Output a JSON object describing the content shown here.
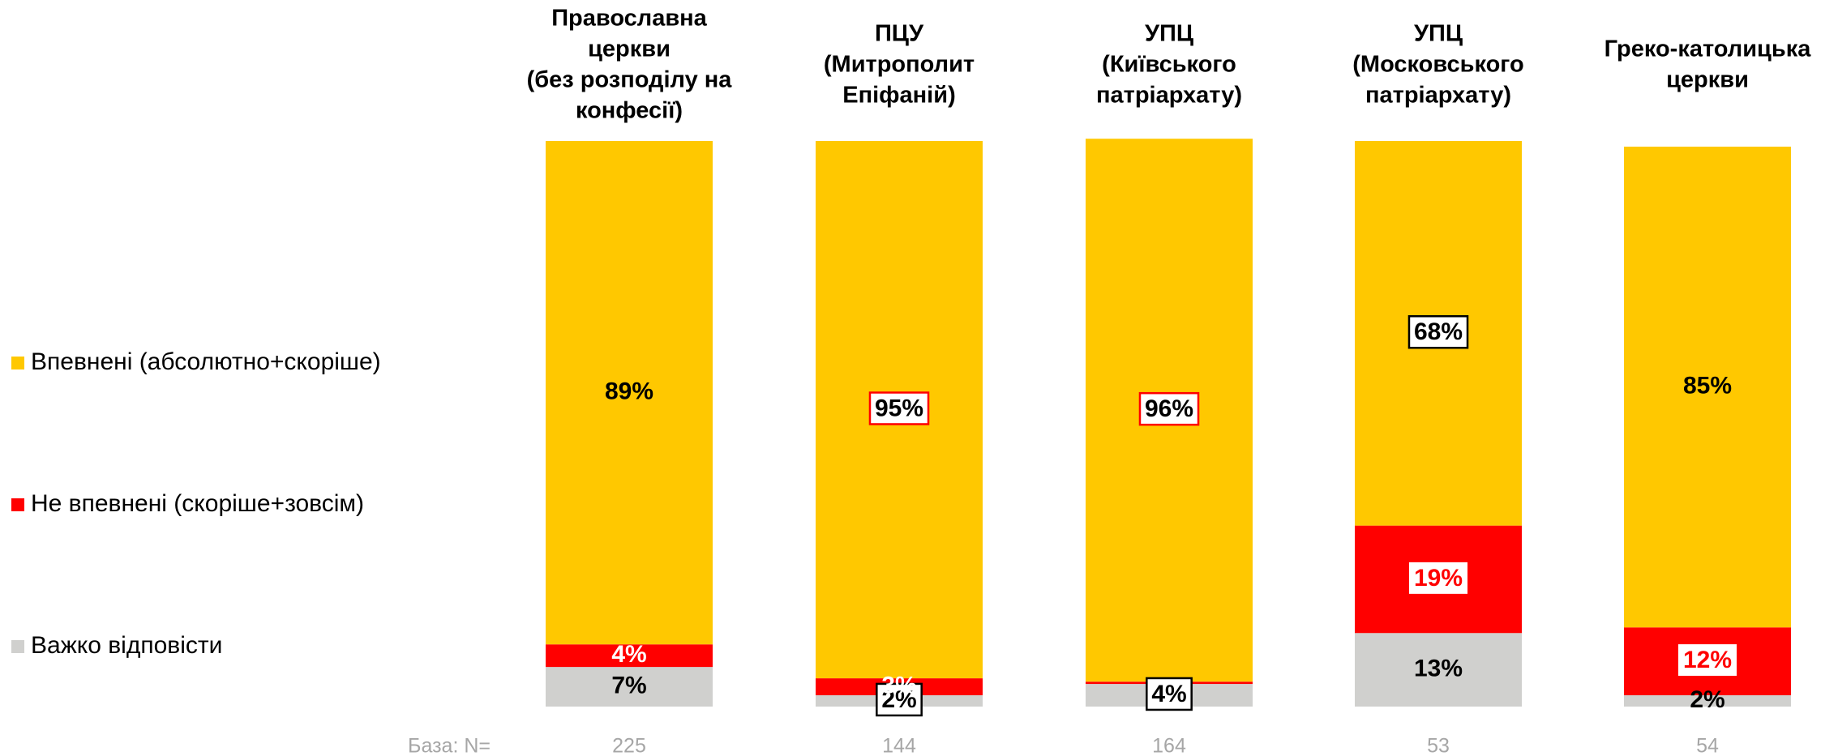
{
  "chart_data": {
    "type": "stacked-bar",
    "categories": [
      [
        "Православна",
        "церкви",
        "(без розподілу на",
        "конфесії)"
      ],
      [
        "ПЦУ",
        "(Митрополит",
        "Епіфаній)"
      ],
      [
        "УПЦ",
        "(Київського",
        "патріархату)"
      ],
      [
        "УПЦ",
        "(Московського",
        "патріархату)"
      ],
      [
        "Греко-католицька",
        "церкви"
      ]
    ],
    "series": [
      {
        "name": "Впевнені (абсолютно+скоріше)",
        "color": "#FFC800",
        "values": [
          89,
          95,
          96,
          68,
          85
        ],
        "value_labels": [
          "89%",
          "95%",
          "96%",
          "68%",
          "85%"
        ]
      },
      {
        "name": "Не впевнені (скоріше+зовсім)",
        "color": "#FF0000",
        "values": [
          4,
          3,
          0.4,
          19,
          12
        ],
        "value_labels": [
          "4%",
          "3%",
          null,
          "19%",
          "12%"
        ]
      },
      {
        "name": "Важко відповісти",
        "color": "#D0D0CE",
        "values": [
          7,
          2,
          4,
          13,
          2
        ],
        "value_labels": [
          "7%",
          "2%",
          "4%",
          "13%",
          "2%"
        ]
      }
    ],
    "ylim": [
      0,
      100
    ],
    "base": {
      "label": "База: N=",
      "values": [
        225,
        144,
        164,
        53,
        54
      ]
    }
  }
}
